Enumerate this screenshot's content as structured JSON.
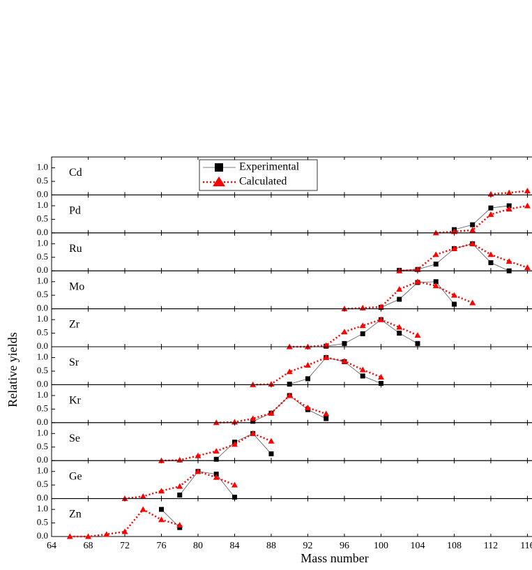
{
  "xlabel": "Mass number",
  "ylabel": "Relative yields",
  "chart_data": [
    {
      "type": "line",
      "title": "Cd",
      "legend": true,
      "xlim": [
        64,
        116.5
      ],
      "ylim": [
        0,
        1.4
      ],
      "yticks": [
        {
          "value": 0,
          "label": "0.0"
        },
        {
          "value": 0.5,
          "label": "0.5"
        },
        {
          "value": 1,
          "label": "1.0"
        }
      ],
      "series": [
        {
          "name": "Experimental",
          "color": "#000000",
          "x": [],
          "values": []
        },
        {
          "name": "Calculated",
          "color": "#ff0000",
          "x": [
            112,
            114,
            116
          ],
          "values": [
            0.03,
            0.08,
            0.15
          ]
        }
      ]
    },
    {
      "type": "line",
      "title": "Pd",
      "xlim": [
        64,
        116.5
      ],
      "ylim": [
        0,
        1.4
      ],
      "yticks": [
        {
          "value": 0,
          "label": "0.0"
        },
        {
          "value": 0.5,
          "label": "0.5"
        },
        {
          "value": 1,
          "label": "1.0"
        }
      ],
      "series": [
        {
          "name": "Experimental",
          "color": "#000000",
          "x": [
            108,
            110,
            112,
            114
          ],
          "values": [
            0.12,
            0.3,
            0.92,
            1.0
          ]
        },
        {
          "name": "Calculated",
          "color": "#ff0000",
          "x": [
            106,
            108,
            110,
            112,
            114,
            116
          ],
          "values": [
            0.0,
            0.05,
            0.1,
            0.68,
            0.88,
            1.0
          ]
        }
      ]
    },
    {
      "type": "line",
      "title": "Ru",
      "xlim": [
        64,
        116.5
      ],
      "ylim": [
        0,
        1.4
      ],
      "yticks": [
        {
          "value": 0,
          "label": "0.0"
        },
        {
          "value": 0.5,
          "label": "0.5"
        },
        {
          "value": 1,
          "label": "1.0"
        }
      ],
      "series": [
        {
          "name": "Experimental",
          "color": "#000000",
          "x": [
            102,
            104,
            106,
            108,
            110,
            112,
            114
          ],
          "values": [
            0.02,
            0.05,
            0.25,
            0.82,
            1.0,
            0.3,
            0.0
          ]
        },
        {
          "name": "Calculated",
          "color": "#ff0000",
          "x": [
            102,
            104,
            106,
            108,
            110,
            112,
            114,
            116
          ],
          "values": [
            0.0,
            0.05,
            0.6,
            0.82,
            1.0,
            0.6,
            0.35,
            0.12
          ]
        }
      ]
    },
    {
      "type": "line",
      "title": "Mo",
      "xlim": [
        64,
        116.5
      ],
      "ylim": [
        0,
        1.4
      ],
      "yticks": [
        {
          "value": 0,
          "label": "0.0"
        },
        {
          "value": 0.5,
          "label": "0.5"
        },
        {
          "value": 1,
          "label": "1.0"
        }
      ],
      "series": [
        {
          "name": "Experimental",
          "color": "#000000",
          "x": [
            100,
            102,
            104,
            106,
            108
          ],
          "values": [
            0.05,
            0.35,
            0.97,
            1.0,
            0.17
          ]
        },
        {
          "name": "Calculated",
          "color": "#ff0000",
          "x": [
            96,
            98,
            100,
            102,
            104,
            106,
            108,
            110
          ],
          "values": [
            0.0,
            0.03,
            0.07,
            0.72,
            1.0,
            0.85,
            0.5,
            0.22
          ]
        }
      ]
    },
    {
      "type": "line",
      "title": "Zr",
      "xlim": [
        64,
        116.5
      ],
      "ylim": [
        0,
        1.4
      ],
      "yticks": [
        {
          "value": 0,
          "label": "0.0"
        },
        {
          "value": 0.5,
          "label": "0.5"
        },
        {
          "value": 1,
          "label": "1.0"
        }
      ],
      "series": [
        {
          "name": "Experimental",
          "color": "#000000",
          "x": [
            94,
            96,
            98,
            100,
            102,
            104
          ],
          "values": [
            0.02,
            0.12,
            0.48,
            1.0,
            0.5,
            0.12
          ]
        },
        {
          "name": "Calculated",
          "color": "#ff0000",
          "x": [
            90,
            92,
            94,
            96,
            98,
            100,
            102,
            104
          ],
          "values": [
            0.0,
            0.0,
            0.05,
            0.55,
            0.78,
            1.0,
            0.72,
            0.42
          ]
        }
      ]
    },
    {
      "type": "line",
      "title": "Sr",
      "xlim": [
        64,
        116.5
      ],
      "ylim": [
        0,
        1.4
      ],
      "yticks": [
        {
          "value": 0,
          "label": "0.0"
        },
        {
          "value": 0.5,
          "label": "0.5"
        },
        {
          "value": 1,
          "label": "1.0"
        }
      ],
      "series": [
        {
          "name": "Experimental",
          "color": "#000000",
          "x": [
            90,
            92,
            94,
            96,
            98,
            100
          ],
          "values": [
            0.02,
            0.22,
            1.0,
            0.85,
            0.32,
            0.05
          ]
        },
        {
          "name": "Calculated",
          "color": "#ff0000",
          "x": [
            86,
            88,
            90,
            92,
            94,
            96,
            98,
            100
          ],
          "values": [
            0.0,
            0.02,
            0.48,
            0.72,
            1.0,
            0.87,
            0.55,
            0.28
          ]
        }
      ]
    },
    {
      "type": "line",
      "title": "Kr",
      "xlim": [
        64,
        116.5
      ],
      "ylim": [
        0,
        1.4
      ],
      "yticks": [
        {
          "value": 0,
          "label": "0.0"
        },
        {
          "value": 0.5,
          "label": "0.5"
        },
        {
          "value": 1,
          "label": "1.0"
        }
      ],
      "series": [
        {
          "name": "Experimental",
          "color": "#000000",
          "x": [
            86,
            88,
            90,
            92,
            94
          ],
          "values": [
            0.05,
            0.35,
            1.0,
            0.48,
            0.15
          ]
        },
        {
          "name": "Calculated",
          "color": "#ff0000",
          "x": [
            82,
            84,
            86,
            88,
            90,
            92,
            94
          ],
          "values": [
            0.0,
            0.02,
            0.15,
            0.35,
            1.0,
            0.55,
            0.33
          ]
        }
      ]
    },
    {
      "type": "line",
      "title": "Se",
      "xlim": [
        64,
        116.5
      ],
      "ylim": [
        0,
        1.4
      ],
      "yticks": [
        {
          "value": 0,
          "label": "0.0"
        },
        {
          "value": 0.5,
          "label": "0.5"
        },
        {
          "value": 1,
          "label": "1.0"
        }
      ],
      "series": [
        {
          "name": "Experimental",
          "color": "#000000",
          "x": [
            82,
            84,
            86,
            88
          ],
          "values": [
            0.05,
            0.68,
            1.0,
            0.25
          ]
        },
        {
          "name": "Calculated",
          "color": "#ff0000",
          "x": [
            76,
            78,
            80,
            82,
            84,
            86,
            88
          ],
          "values": [
            0.0,
            0.02,
            0.18,
            0.35,
            0.6,
            1.0,
            0.72
          ]
        }
      ]
    },
    {
      "type": "line",
      "title": "Ge",
      "xlim": [
        64,
        116.5
      ],
      "ylim": [
        0,
        1.4
      ],
      "yticks": [
        {
          "value": 0,
          "label": "0.0"
        },
        {
          "value": 0.5,
          "label": "0.5"
        },
        {
          "value": 1,
          "label": "1.0"
        }
      ],
      "series": [
        {
          "name": "Experimental",
          "color": "#000000",
          "x": [
            78,
            80,
            82,
            84
          ],
          "values": [
            0.13,
            1.0,
            0.9,
            0.05
          ]
        },
        {
          "name": "Calculated",
          "color": "#ff0000",
          "x": [
            72,
            74,
            76,
            78,
            80,
            82,
            84
          ],
          "values": [
            0.0,
            0.08,
            0.28,
            0.45,
            1.0,
            0.78,
            0.5
          ]
        }
      ]
    },
    {
      "type": "line",
      "title": "Zn",
      "xlim": [
        64,
        116.5
      ],
      "ylim": [
        0,
        1.4
      ],
      "xticks": [
        64,
        68,
        72,
        76,
        80,
        84,
        88,
        92,
        96,
        100,
        104,
        108,
        112,
        116
      ],
      "yticks": [
        {
          "value": 0,
          "label": "0.0"
        },
        {
          "value": 0.5,
          "label": "0.5"
        },
        {
          "value": 1,
          "label": "1.0"
        }
      ],
      "series": [
        {
          "name": "Experimental",
          "color": "#000000",
          "x": [
            76,
            78
          ],
          "values": [
            1.0,
            0.33
          ]
        },
        {
          "name": "Calculated",
          "color": "#ff0000",
          "x": [
            66,
            68,
            70,
            72,
            74,
            76,
            78
          ],
          "values": [
            0.0,
            0.0,
            0.08,
            0.18,
            1.0,
            0.62,
            0.42
          ]
        }
      ]
    }
  ]
}
